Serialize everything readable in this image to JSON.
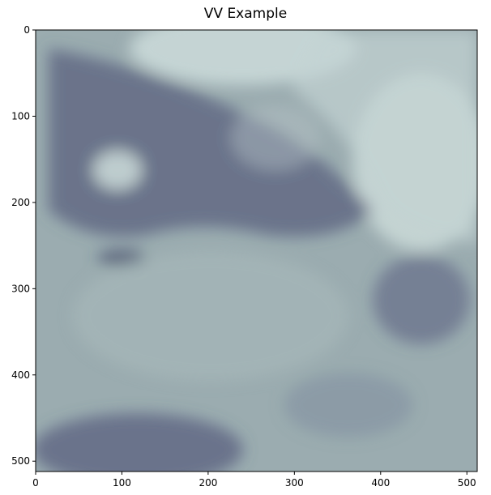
{
  "chart_data": {
    "type": "heatmap",
    "title": "VV Example",
    "xlabel": "",
    "ylabel": "",
    "image_size": [
      512,
      512
    ],
    "xlim": [
      0,
      512
    ],
    "ylim": [
      512,
      0
    ],
    "x_ticks": [
      0,
      100,
      200,
      300,
      400,
      500
    ],
    "y_ticks": [
      0,
      100,
      200,
      300,
      400,
      500
    ],
    "x_tick_labels": [
      "0",
      "100",
      "200",
      "300",
      "400",
      "500"
    ],
    "y_tick_labels": [
      "0",
      "100",
      "200",
      "300",
      "400",
      "500"
    ],
    "grid": false,
    "colormap": "bone",
    "colors": {
      "dark": "#3a3b5a",
      "mid": "#8a9ea6",
      "light": "#d8e6e4"
    }
  }
}
